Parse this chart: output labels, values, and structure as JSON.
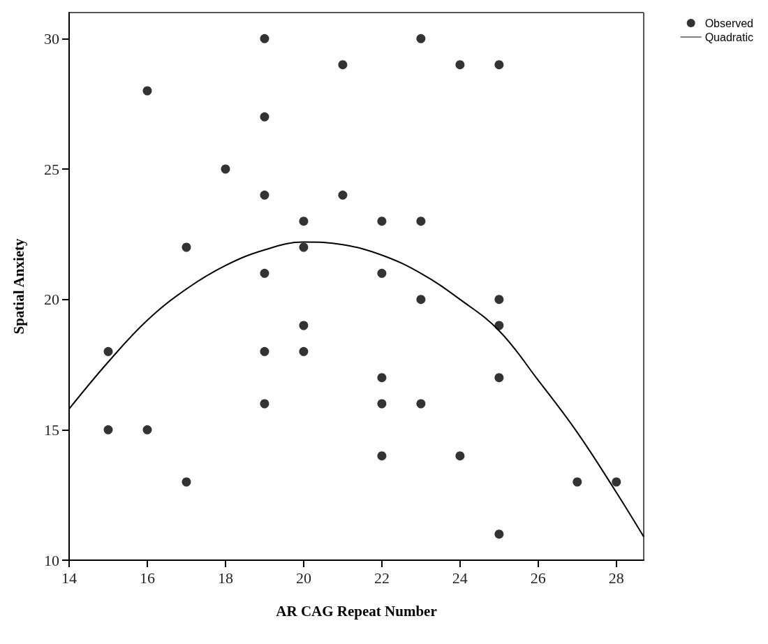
{
  "chart_data": {
    "type": "scatter",
    "xlabel": "AR CAG Repeat Number",
    "ylabel": "Spatial Anxiety",
    "xlim": [
      14,
      28.7
    ],
    "ylim": [
      10,
      31
    ],
    "xticks": [
      14,
      16,
      18,
      20,
      22,
      24,
      26,
      28
    ],
    "yticks": [
      10,
      15,
      20,
      25,
      30
    ],
    "grid": false,
    "legend": "top right",
    "marker": "circle",
    "series": [
      {
        "name": "Observed",
        "color": "#000000",
        "x": [
          15,
          15,
          16,
          16,
          17,
          17,
          18,
          19,
          19,
          19,
          19,
          19,
          19,
          20,
          20,
          20,
          20,
          21,
          21,
          22,
          22,
          22,
          22,
          22,
          23,
          23,
          23,
          23,
          24,
          24,
          25,
          25,
          25,
          25,
          25,
          27,
          28
        ],
        "values": [
          18,
          15,
          28,
          15,
          22,
          13,
          25,
          30,
          27,
          24,
          21,
          18,
          16,
          23,
          22,
          19,
          18,
          29,
          24,
          23,
          21,
          17,
          16,
          14,
          30,
          23,
          20,
          16,
          29,
          14,
          29,
          20,
          19,
          17,
          11,
          13,
          13
        ]
      },
      {
        "name": "Quadratic",
        "type": "line",
        "color": "#000000",
        "marker": "none",
        "line_style": "solid",
        "x": [
          14,
          15,
          16,
          17,
          18,
          19,
          20,
          21,
          22,
          23,
          24,
          25,
          26,
          27,
          28,
          28.7
        ],
        "values": [
          15.8,
          17.6,
          19.2,
          20.4,
          21.3,
          21.9,
          22.2,
          22.1,
          21.7,
          21.0,
          20.0,
          18.8,
          16.9,
          14.9,
          12.6,
          10.9
        ]
      }
    ]
  }
}
